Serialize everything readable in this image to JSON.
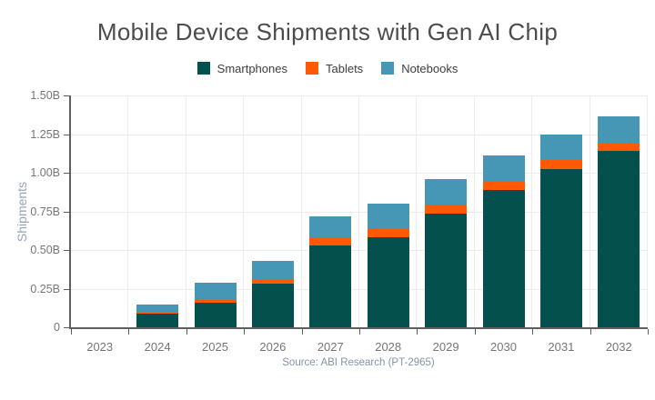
{
  "header": {
    "title": "Mobile Device Shipments with Gen AI Chip"
  },
  "chart_data": {
    "type": "bar",
    "stacked": true,
    "title": "Mobile Device Shipments with Gen AI Chip",
    "xlabel": "",
    "ylabel": "Shipments",
    "categories": [
      "2023",
      "2024",
      "2025",
      "2026",
      "2027",
      "2028",
      "2029",
      "2030",
      "2031",
      "2032"
    ],
    "series": [
      {
        "name": "Smartphones",
        "color": "#03504c",
        "values": [
          0,
          0.09,
          0.16,
          0.285,
          0.53,
          0.58,
          0.735,
          0.89,
          1.025,
          1.14
        ]
      },
      {
        "name": "Tablets",
        "color": "#ff5a03",
        "values": [
          0,
          0.005,
          0.02,
          0.025,
          0.05,
          0.055,
          0.06,
          0.05,
          0.055,
          0.055
        ]
      },
      {
        "name": "Notebooks",
        "color": "#4597b5",
        "values": [
          0,
          0.05,
          0.11,
          0.12,
          0.14,
          0.165,
          0.165,
          0.17,
          0.165,
          0.17
        ]
      }
    ],
    "ylim": [
      0,
      1.5
    ],
    "ytick_values": [
      0,
      0.25,
      0.5,
      0.75,
      1.0,
      1.25,
      1.5
    ],
    "ytick_labels": [
      "0",
      "0.25B",
      "0.50B",
      "0.75B",
      "1.00B",
      "1.25B",
      "1.50B"
    ],
    "grid": true,
    "legend_position": "top"
  },
  "footer": {
    "source": "Source: ABI Research (PT-2965)"
  },
  "colors": {
    "axis": "#5f5f5f",
    "grid": "#ececec",
    "tick_label": "#767676",
    "title": "#4c4c4c",
    "axis_title": "#95a3b6",
    "source": "#8494a8",
    "background": "#ffffff"
  }
}
